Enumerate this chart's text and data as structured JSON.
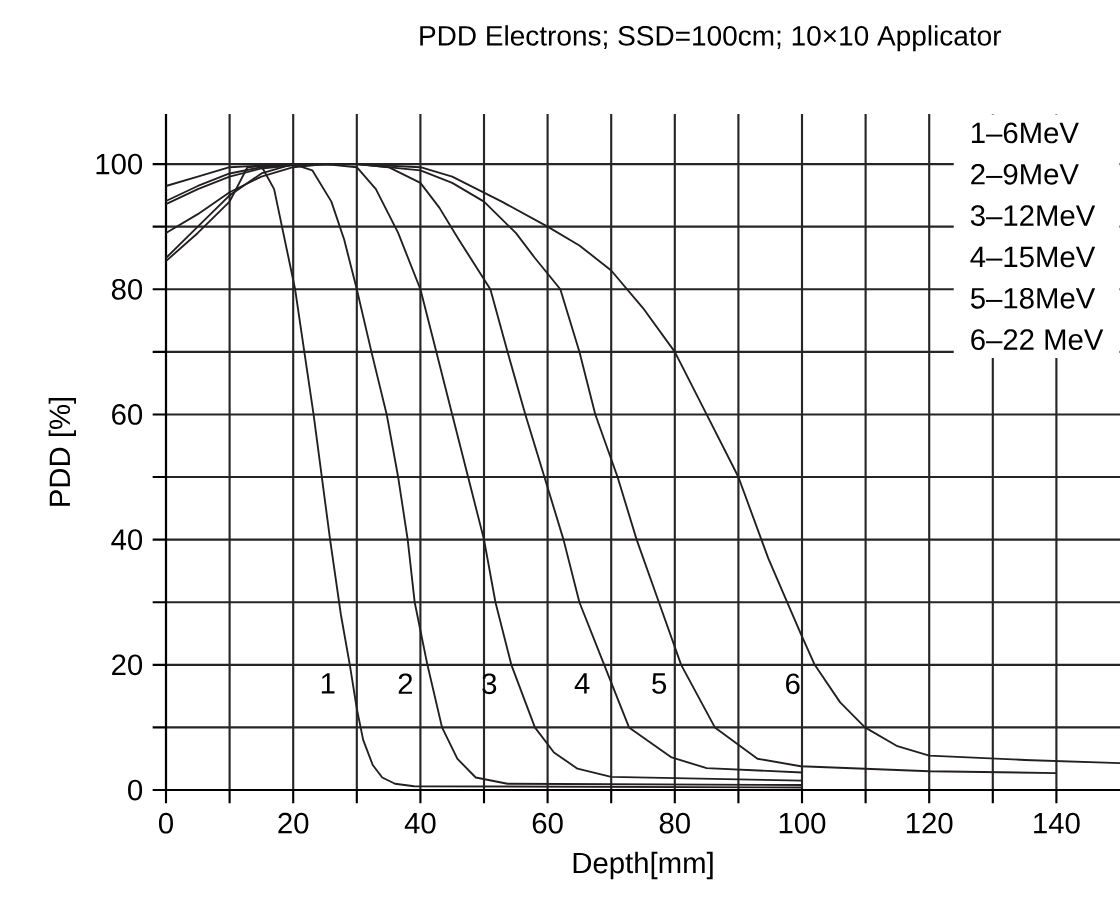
{
  "chart_data": {
    "type": "line",
    "title": "PDD Electrons; SSD=100cm; 10×10 Applicator",
    "xlabel": "Depth[mm]",
    "ylabel": "PDD [%]",
    "xlim": [
      0,
      150
    ],
    "ylim": [
      0,
      108
    ],
    "xticks": [
      0,
      {
        "value": 10,
        "label": null
      },
      20,
      {
        "value": 30,
        "label": null
      },
      40,
      {
        "value": 50,
        "label": null
      },
      60,
      {
        "value": 70,
        "label": null
      },
      80,
      {
        "value": 90,
        "label": null
      },
      100,
      {
        "value": 110,
        "label": null
      },
      120,
      {
        "value": 130,
        "label": null
      },
      140
    ],
    "yticks": [
      0,
      {
        "value": 10,
        "label": null
      },
      20,
      {
        "value": 30,
        "label": null
      },
      40,
      {
        "value": 50,
        "label": null
      },
      60,
      {
        "value": 70,
        "label": null
      },
      80,
      {
        "value": 90,
        "label": null
      },
      100
    ],
    "grid": true,
    "marker": "none",
    "line_style": "solid",
    "series": [
      {
        "color": "#231f20",
        "x": [
          0,
          5,
          10,
          12.8,
          15,
          17,
          20.3,
          23.2,
          25.8,
          27.5,
          28.9,
          30,
          31,
          32.5,
          34,
          36,
          39,
          100
        ],
        "values": [
          84.5,
          89,
          94,
          99.5,
          99.7,
          96,
          80,
          60,
          40,
          28,
          20,
          13,
          8,
          4,
          2,
          1,
          0.6,
          0.4
        ]
      },
      {
        "color": "#231f20",
        "x": [
          0,
          5,
          10,
          15,
          20,
          23,
          26,
          28,
          30,
          32.3,
          34.7,
          36.5,
          38,
          39.1,
          41.1,
          43.4,
          45.8,
          48.7,
          53.7,
          100
        ],
        "values": [
          85,
          90,
          95,
          98.5,
          100,
          99,
          94,
          88,
          80,
          70,
          60,
          50,
          40,
          30,
          20,
          10,
          5,
          2,
          1,
          0.8
        ]
      },
      {
        "color": "#231f20",
        "x": [
          0,
          5,
          10,
          15,
          20,
          25,
          30,
          33,
          36.5,
          40,
          42.5,
          45,
          47.5,
          50,
          51.8,
          54.3,
          58,
          61,
          64.7,
          70,
          100
        ],
        "values": [
          89,
          92,
          95.5,
          98,
          99.5,
          100,
          99.5,
          96,
          89,
          80,
          70,
          60,
          50,
          40,
          30,
          20,
          10,
          6,
          3.4,
          2.1,
          1.5
        ]
      },
      {
        "color": "#231f20",
        "x": [
          0,
          5,
          10,
          15,
          20,
          30,
          35,
          40,
          43,
          46,
          51,
          53.7,
          56.5,
          59.5,
          62.5,
          65,
          68.9,
          72.8,
          79.5,
          85,
          100
        ],
        "values": [
          93.6,
          96,
          98,
          99.3,
          99.8,
          100,
          99.5,
          97,
          93,
          88,
          80,
          70,
          60,
          50,
          40,
          30,
          20,
          10,
          5.2,
          3.5,
          2.8
        ]
      },
      {
        "color": "#231f20",
        "x": [
          0,
          5,
          10,
          15,
          20,
          30,
          40,
          45,
          50,
          55,
          58,
          62,
          65,
          67.5,
          71,
          74,
          77.5,
          81,
          86.3,
          93,
          99.8,
          120,
          140
        ],
        "values": [
          94.1,
          96.5,
          98.5,
          99.5,
          100,
          100,
          99,
          97,
          94,
          89,
          85,
          80,
          70,
          60,
          50,
          40,
          30,
          20,
          10,
          5,
          3.8,
          3,
          2.7
        ]
      },
      {
        "color": "#231f20",
        "x": [
          0,
          5,
          10,
          20,
          30,
          40,
          45,
          52.8,
          60,
          65,
          70,
          75,
          80,
          85,
          90,
          94.7,
          99.8,
          102,
          106,
          109.9,
          115,
          120,
          135,
          150
        ],
        "values": [
          96.5,
          98,
          99.5,
          100,
          100,
          99.5,
          98,
          94,
          90,
          87,
          83,
          77,
          70,
          60,
          50,
          37,
          25,
          20,
          14,
          10,
          7,
          5.5,
          4.8,
          4.3
        ]
      }
    ],
    "annotations": [
      {
        "text": "1",
        "x": 28.9,
        "y": 20
      },
      {
        "text": "2",
        "x": 41.1,
        "y": 20
      },
      {
        "text": "3",
        "x": 54.3,
        "y": 20
      },
      {
        "text": "4",
        "x": 68.9,
        "y": 20
      },
      {
        "text": "5",
        "x": 81,
        "y": 20
      },
      {
        "text": "6",
        "x": 102,
        "y": 20
      },
      "1–6MeV",
      "2–9MeV",
      "3–12MeV",
      "4–15MeV",
      "5–18MeV",
      "6–22 MeV"
    ]
  }
}
